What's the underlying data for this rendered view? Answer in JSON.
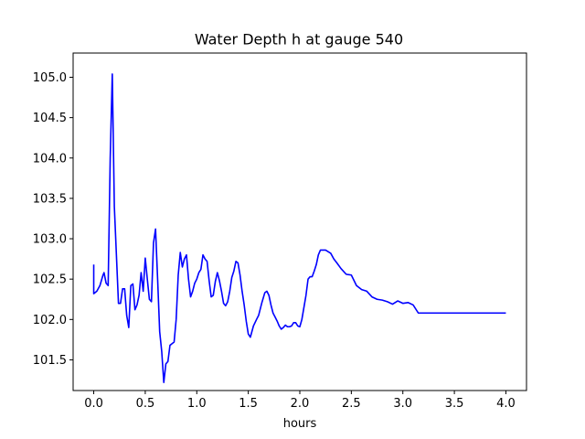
{
  "chart_data": {
    "type": "line",
    "title": "Water Depth h at gauge 540",
    "xlabel": "hours",
    "ylabel": "",
    "xlim": [
      -0.2,
      4.2
    ],
    "ylim": [
      101.12,
      105.3
    ],
    "xticks": [
      "0.0",
      "0.5",
      "1.0",
      "1.5",
      "2.0",
      "2.5",
      "3.0",
      "3.5",
      "4.0"
    ],
    "xtick_values": [
      0.0,
      0.5,
      1.0,
      1.5,
      2.0,
      2.5,
      3.0,
      3.5,
      4.0
    ],
    "yticks": [
      "101.5",
      "102.0",
      "102.5",
      "103.0",
      "103.5",
      "104.0",
      "104.5",
      "105.0"
    ],
    "ytick_values": [
      101.5,
      102.0,
      102.5,
      103.0,
      103.5,
      104.0,
      104.5,
      105.0
    ],
    "grid": false,
    "legend": "none",
    "series": [
      {
        "color": "#0000ff",
        "x": [
          0.0,
          0.0,
          0.03,
          0.06,
          0.09,
          0.1,
          0.12,
          0.14,
          0.16,
          0.18,
          0.2,
          0.22,
          0.24,
          0.26,
          0.28,
          0.3,
          0.32,
          0.34,
          0.36,
          0.38,
          0.4,
          0.42,
          0.44,
          0.46,
          0.48,
          0.5,
          0.52,
          0.54,
          0.56,
          0.58,
          0.6,
          0.62,
          0.64,
          0.66,
          0.68,
          0.7,
          0.72,
          0.74,
          0.76,
          0.78,
          0.8,
          0.82,
          0.84,
          0.86,
          0.88,
          0.9,
          0.92,
          0.94,
          0.96,
          0.98,
          1.0,
          1.02,
          1.04,
          1.06,
          1.08,
          1.1,
          1.12,
          1.14,
          1.16,
          1.18,
          1.2,
          1.22,
          1.24,
          1.26,
          1.28,
          1.3,
          1.32,
          1.34,
          1.36,
          1.38,
          1.4,
          1.42,
          1.44,
          1.46,
          1.48,
          1.5,
          1.52,
          1.55,
          1.58,
          1.6,
          1.63,
          1.66,
          1.68,
          1.7,
          1.72,
          1.74,
          1.76,
          1.78,
          1.8,
          1.82,
          1.84,
          1.86,
          1.88,
          1.9,
          1.92,
          1.94,
          1.96,
          1.98,
          2.0,
          2.02,
          2.04,
          2.06,
          2.08,
          2.1,
          2.12,
          2.14,
          2.16,
          2.18,
          2.2,
          2.25,
          2.3,
          2.33,
          2.36,
          2.4,
          2.45,
          2.5,
          2.55,
          2.6,
          2.65,
          2.7,
          2.75,
          2.8,
          2.85,
          2.9,
          2.95,
          3.0,
          3.05,
          3.1,
          3.15,
          3.2,
          3.25,
          3.3,
          3.35,
          3.4,
          3.45,
          3.5,
          3.55,
          3.6,
          3.65,
          3.7,
          3.75,
          3.8,
          3.85,
          3.9,
          3.95,
          4.0
        ],
        "y": [
          102.68,
          102.32,
          102.35,
          102.42,
          102.55,
          102.58,
          102.45,
          102.42,
          104.0,
          105.04,
          103.4,
          102.8,
          102.2,
          102.2,
          102.38,
          102.38,
          102.05,
          101.9,
          102.42,
          102.44,
          102.12,
          102.18,
          102.3,
          102.58,
          102.35,
          102.76,
          102.5,
          102.25,
          102.22,
          102.95,
          103.12,
          102.5,
          101.85,
          101.6,
          101.22,
          101.45,
          101.48,
          101.68,
          101.7,
          101.72,
          102.0,
          102.55,
          102.83,
          102.65,
          102.75,
          102.8,
          102.5,
          102.28,
          102.35,
          102.45,
          102.5,
          102.58,
          102.62,
          102.8,
          102.75,
          102.72,
          102.48,
          102.28,
          102.3,
          102.47,
          102.58,
          102.48,
          102.35,
          102.2,
          102.17,
          102.22,
          102.35,
          102.52,
          102.6,
          102.72,
          102.7,
          102.55,
          102.35,
          102.18,
          101.98,
          101.82,
          101.78,
          101.92,
          102.0,
          102.05,
          102.2,
          102.33,
          102.35,
          102.3,
          102.18,
          102.08,
          102.03,
          101.98,
          101.92,
          101.88,
          101.9,
          101.93,
          101.91,
          101.91,
          101.92,
          101.96,
          101.96,
          101.92,
          101.91,
          102.0,
          102.15,
          102.3,
          102.5,
          102.53,
          102.53,
          102.6,
          102.68,
          102.8,
          102.86,
          102.86,
          102.82,
          102.75,
          102.7,
          102.63,
          102.56,
          102.55,
          102.42,
          102.37,
          102.35,
          102.28,
          102.25,
          102.24,
          102.22,
          102.19,
          102.23,
          102.2,
          102.21,
          102.18,
          102.08,
          102.08,
          102.08,
          102.08,
          102.08,
          102.08,
          102.08,
          102.08,
          102.08,
          102.08,
          102.08,
          102.08,
          102.08,
          102.08,
          102.08,
          102.08,
          102.08,
          102.08
        ]
      }
    ]
  }
}
